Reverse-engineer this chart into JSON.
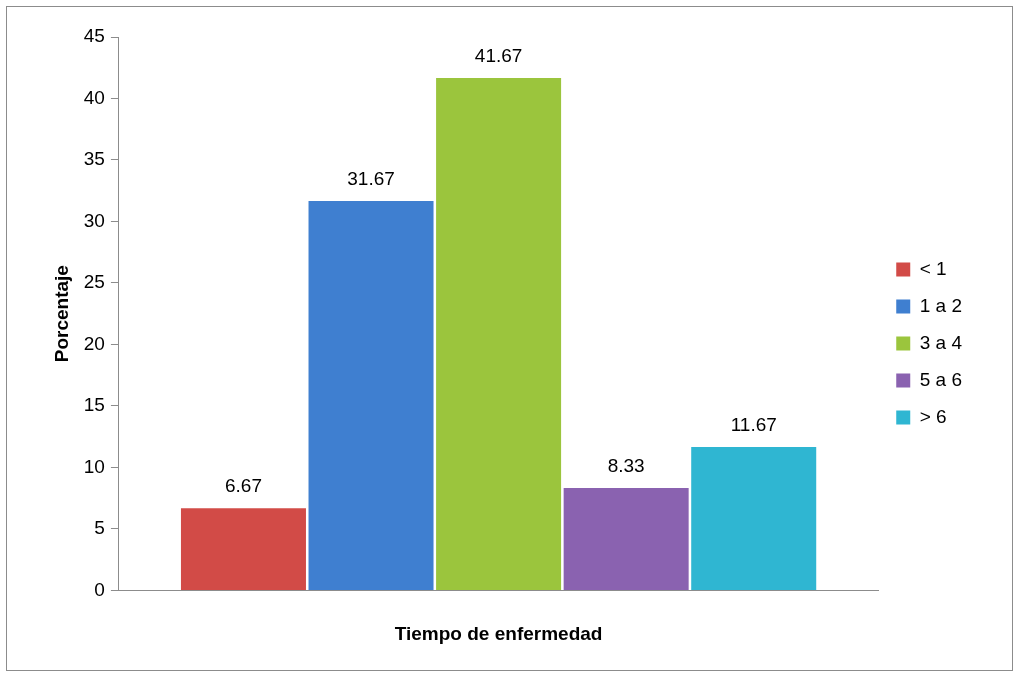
{
  "chart_data": {
    "type": "bar",
    "xlabel": "Tiempo de enfermedad",
    "ylabel": "Porcentaje",
    "categories": [
      null
    ],
    "series": [
      {
        "name": "< 1",
        "color": "#d24b47",
        "values": [
          6.67
        ]
      },
      {
        "name": "1 a 2",
        "color": "#3f7fd0",
        "values": [
          31.67
        ]
      },
      {
        "name": "3 a 4",
        "color": "#9bc53d",
        "values": [
          41.67
        ]
      },
      {
        "name": "5 a 6",
        "color": "#8a62b0",
        "values": [
          8.33
        ]
      },
      {
        "name": "> 6",
        "color": "#2fb6d2",
        "values": [
          11.67
        ]
      }
    ],
    "ylim": [
      0,
      45
    ],
    "yticks": [
      0,
      5,
      10,
      15,
      20,
      25,
      30,
      35,
      40,
      45
    ],
    "grid": false,
    "legend": "right",
    "data_labels": true
  }
}
